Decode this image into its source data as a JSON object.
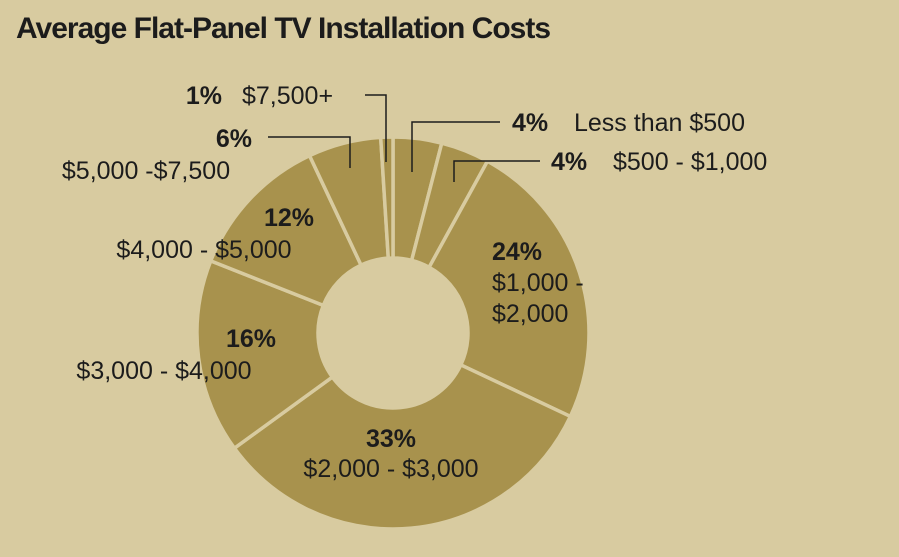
{
  "chart_data": {
    "type": "pie",
    "title": "Average Flat-Panel TV Installation Costs",
    "donut": true,
    "slices": [
      {
        "percent_label": "4%",
        "range_label": "Less than $500",
        "value": 4
      },
      {
        "percent_label": "4%",
        "range_label": "$500 - $1,000",
        "value": 4
      },
      {
        "percent_label": "24%",
        "range_label": "$1,000 -",
        "range_label_2": "$2,000",
        "value": 24
      },
      {
        "percent_label": "33%",
        "range_label": "$2,000 - $3,000",
        "value": 33
      },
      {
        "percent_label": "16%",
        "range_label": "$3,000 - $4,000",
        "value": 16
      },
      {
        "percent_label": "12%",
        "range_label": "$4,000 - $5,000",
        "value": 12
      },
      {
        "percent_label": "6%",
        "range_label": "$5,000 -$7,500",
        "value": 6
      },
      {
        "percent_label": "1%",
        "range_label": "$7,500+",
        "value": 1
      }
    ],
    "colors": {
      "slice": "#a8924d",
      "background": "#d8cba0",
      "text": "#1c1c1c"
    }
  }
}
